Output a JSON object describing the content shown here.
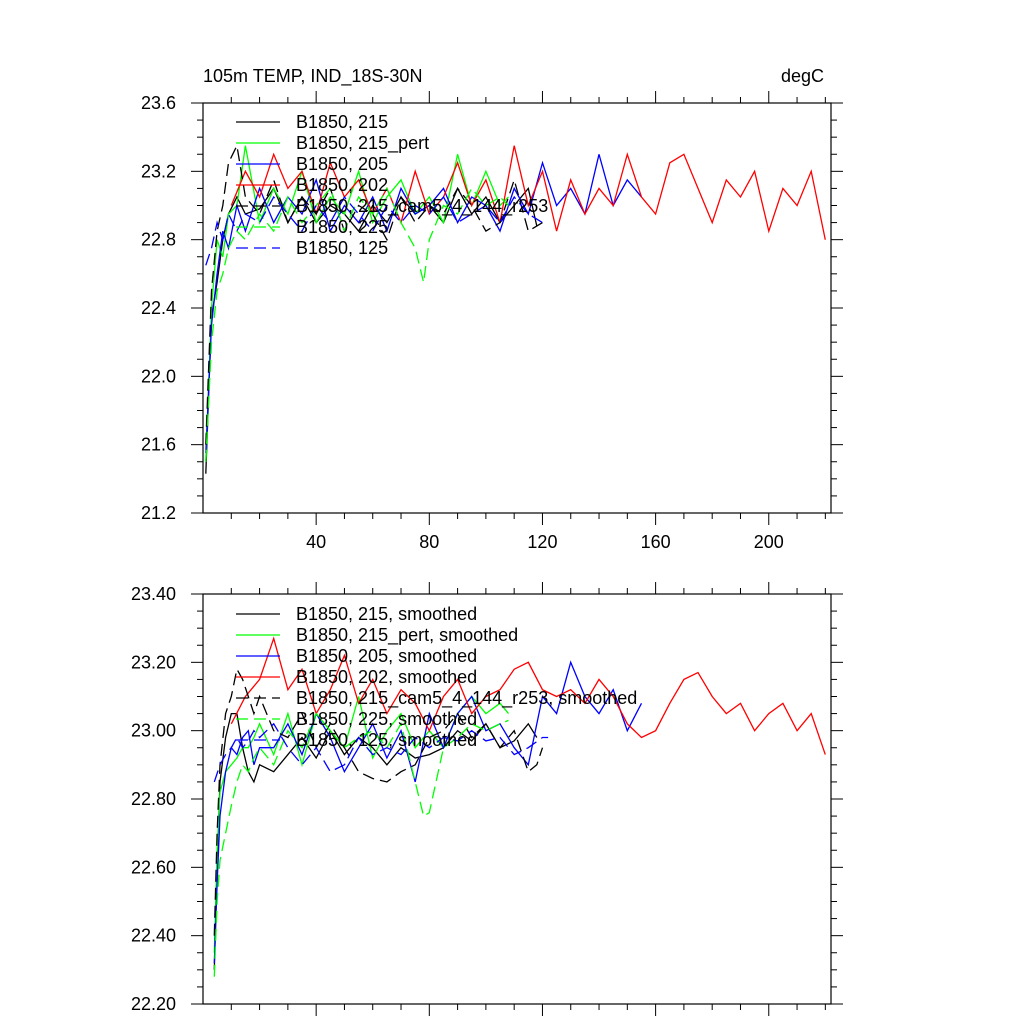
{
  "chart_data": [
    {
      "type": "line",
      "title": "105m TEMP, IND_18S-30N",
      "units": "degC",
      "xlim": [
        0,
        222
      ],
      "ylim": [
        21.2,
        23.6
      ],
      "x_ticks": [
        40,
        80,
        120,
        160,
        200
      ],
      "x_tick_labels": [
        "40",
        "80",
        "120",
        "160",
        "200"
      ],
      "y_ticks": [
        21.2,
        21.6,
        22.0,
        22.4,
        22.8,
        23.2,
        23.6
      ],
      "y_tick_labels": [
        "21.2",
        "21.6",
        "22.0",
        "22.4",
        "22.8",
        "23.2",
        "23.6"
      ],
      "legend": "top-left",
      "series": [
        {
          "name": "B1850, 215",
          "color": "#000000",
          "dash": "solid",
          "x": [
            1,
            3,
            5,
            7,
            9,
            12,
            15,
            20,
            25,
            30,
            35,
            40,
            45,
            50,
            55,
            60,
            65,
            70,
            75,
            80,
            85,
            90,
            95,
            100,
            105,
            110,
            115,
            118
          ],
          "y": [
            21.43,
            22.35,
            22.55,
            22.8,
            22.95,
            23.05,
            22.95,
            22.98,
            23.1,
            22.9,
            23.05,
            22.9,
            23.0,
            22.95,
            22.85,
            23.0,
            22.9,
            23.05,
            22.95,
            23.0,
            22.9,
            23.1,
            22.95,
            23.05,
            22.9,
            23.0,
            23.1,
            22.88
          ]
        },
        {
          "name": "B1850, 215_pert",
          "color": "#00ff00",
          "dash": "solid",
          "x": [
            1,
            3,
            5,
            7,
            9,
            12,
            15,
            20,
            25,
            30,
            35,
            40,
            45,
            50,
            55,
            60,
            65,
            70,
            75,
            80,
            85,
            90,
            95,
            100,
            105,
            108
          ],
          "y": [
            21.5,
            22.4,
            22.8,
            22.7,
            22.95,
            23.0,
            23.35,
            22.9,
            23.1,
            22.95,
            23.2,
            22.9,
            23.05,
            22.95,
            23.2,
            22.9,
            23.05,
            23.15,
            22.95,
            23.05,
            22.9,
            23.3,
            23.0,
            23.2,
            23.0,
            23.05
          ]
        },
        {
          "name": "B1850, 205",
          "color": "#0000ff",
          "dash": "solid",
          "x": [
            1,
            3,
            5,
            7,
            9,
            12,
            15,
            20,
            25,
            30,
            35,
            40,
            45,
            50,
            55,
            60,
            65,
            70,
            75,
            80,
            85,
            90,
            95,
            100,
            105,
            110,
            115,
            120,
            125,
            130,
            135,
            140,
            145,
            150,
            155
          ],
          "y": [
            21.55,
            22.3,
            22.6,
            22.85,
            22.75,
            23.0,
            22.85,
            23.1,
            22.9,
            23.05,
            22.95,
            23.15,
            22.85,
            23.0,
            22.9,
            23.05,
            22.85,
            23.1,
            22.95,
            23.0,
            23.1,
            22.9,
            23.05,
            23.0,
            22.85,
            23.1,
            22.95,
            23.25,
            23.0,
            23.1,
            22.95,
            23.3,
            23.0,
            23.15,
            23.05
          ]
        },
        {
          "name": "B1850, 202",
          "color": "#ff0000",
          "dash": "solid",
          "x": [
            10,
            15,
            20,
            25,
            30,
            35,
            40,
            45,
            50,
            55,
            60,
            65,
            70,
            75,
            80,
            85,
            90,
            95,
            100,
            105,
            110,
            115,
            120,
            125,
            130,
            135,
            140,
            145,
            150,
            155,
            160,
            165,
            170,
            175,
            180,
            185,
            190,
            195,
            200,
            205,
            210,
            215,
            220
          ],
          "y": [
            23.0,
            23.2,
            23.05,
            23.3,
            23.1,
            23.2,
            22.95,
            23.25,
            23.05,
            23.15,
            22.95,
            23.1,
            22.9,
            23.2,
            22.95,
            23.05,
            23.25,
            23.0,
            23.15,
            22.9,
            23.35,
            23.0,
            23.2,
            22.85,
            23.15,
            22.95,
            23.1,
            23.0,
            23.3,
            23.05,
            22.95,
            23.25,
            23.3,
            23.1,
            22.9,
            23.15,
            23.05,
            23.2,
            22.85,
            23.1,
            23.0,
            23.2,
            22.8
          ]
        },
        {
          "name": "B1850, 215_cam5_4_144_r253",
          "color": "#000000",
          "dash": "dashed",
          "x": [
            1,
            3,
            5,
            7,
            9,
            12,
            15,
            20,
            25,
            30,
            35,
            40,
            45,
            50,
            55,
            60,
            65,
            70,
            75,
            80,
            85,
            90,
            95,
            100,
            105,
            110,
            115,
            120
          ],
          "y": [
            21.6,
            22.5,
            22.85,
            23.0,
            23.25,
            23.35,
            23.05,
            22.95,
            23.15,
            22.9,
            23.05,
            22.95,
            23.1,
            22.85,
            23.0,
            22.95,
            22.8,
            23.05,
            22.9,
            23.0,
            22.95,
            23.1,
            23.0,
            22.85,
            22.9,
            23.15,
            22.85,
            22.9
          ]
        },
        {
          "name": "B1850, 225",
          "color": "#00ff00",
          "dash": "dashed",
          "x": [
            1,
            3,
            5,
            7,
            9,
            12,
            15,
            20,
            25,
            30,
            35,
            40,
            45,
            50,
            55,
            60,
            65,
            70,
            75,
            78,
            80,
            85,
            90,
            95,
            100,
            105,
            108
          ],
          "y": [
            21.5,
            22.2,
            22.5,
            22.6,
            22.75,
            22.85,
            22.8,
            22.95,
            22.85,
            23.05,
            22.9,
            23.0,
            23.1,
            22.85,
            23.05,
            22.95,
            23.1,
            22.9,
            22.75,
            22.55,
            22.8,
            23.0,
            22.95,
            23.1,
            23.0,
            23.05,
            23.0
          ]
        },
        {
          "name": "B1850, 125",
          "color": "#0000ff",
          "dash": "dashed",
          "x": [
            1,
            3,
            5,
            7,
            9,
            12,
            15,
            20,
            25,
            30,
            35,
            40,
            45,
            50,
            55,
            60,
            65,
            70,
            75,
            80,
            85,
            90,
            95,
            100,
            105,
            110,
            115,
            120
          ],
          "y": [
            22.65,
            22.75,
            22.9,
            22.8,
            22.95,
            22.85,
            22.95,
            22.9,
            23.05,
            22.95,
            22.85,
            23.0,
            22.9,
            23.05,
            22.95,
            22.85,
            23.0,
            22.9,
            23.0,
            22.95,
            23.05,
            22.9,
            22.95,
            23.0,
            22.9,
            23.05,
            22.95,
            22.9
          ]
        }
      ]
    },
    {
      "type": "line",
      "xlim": [
        0,
        222
      ],
      "ylim": [
        22.2,
        23.4
      ],
      "x_ticks": [
        40,
        80,
        120,
        160,
        200
      ],
      "y_ticks": [
        22.2,
        22.4,
        22.6,
        22.8,
        23.0,
        23.2,
        23.4
      ],
      "y_tick_labels": [
        "22.20",
        "22.40",
        "22.60",
        "22.80",
        "23.00",
        "23.20",
        "23.40"
      ],
      "legend": "top-left",
      "series": [
        {
          "name": "B1850, 215, smoothed",
          "color": "#000000",
          "dash": "solid",
          "x": [
            4,
            5,
            6,
            8,
            10,
            12,
            14,
            16,
            18,
            20,
            25,
            30,
            35,
            40,
            45,
            50,
            55,
            60,
            65,
            70,
            75,
            80,
            85,
            90,
            95,
            100,
            105,
            110,
            115,
            118
          ],
          "y": [
            22.3,
            22.6,
            22.85,
            22.98,
            23.05,
            23.05,
            22.95,
            22.88,
            22.85,
            22.9,
            22.88,
            22.93,
            22.98,
            22.92,
            23.0,
            22.93,
            22.98,
            22.95,
            22.9,
            22.95,
            22.92,
            22.93,
            22.95,
            23.0,
            22.97,
            23.02,
            22.95,
            22.97,
            23.02,
            22.98
          ]
        },
        {
          "name": "B1850, 215_pert, smoothed",
          "color": "#00ff00",
          "dash": "solid",
          "x": [
            4,
            5,
            6,
            8,
            10,
            12,
            14,
            16,
            18,
            20,
            25,
            30,
            35,
            40,
            45,
            50,
            55,
            60,
            65,
            70,
            75,
            80,
            85,
            90,
            95,
            100,
            105,
            108
          ],
          "y": [
            22.35,
            22.65,
            22.82,
            22.88,
            22.9,
            22.92,
            22.95,
            22.95,
            22.98,
            23.02,
            22.93,
            23.05,
            22.9,
            23.05,
            23.0,
            22.95,
            23.1,
            22.92,
            23.0,
            23.05,
            22.95,
            23.0,
            22.95,
            23.05,
            23.1,
            23.05,
            23.08,
            23.05
          ]
        },
        {
          "name": "B1850, 205, smoothed",
          "color": "#0000ff",
          "dash": "solid",
          "x": [
            4,
            5,
            6,
            8,
            10,
            12,
            14,
            16,
            18,
            20,
            25,
            30,
            35,
            40,
            45,
            50,
            55,
            60,
            65,
            70,
            75,
            80,
            85,
            90,
            95,
            100,
            105,
            110,
            115,
            120,
            125,
            130,
            135,
            140,
            145,
            150,
            155
          ],
          "y": [
            22.32,
            22.55,
            22.75,
            22.88,
            22.95,
            22.93,
            22.98,
            23.0,
            22.9,
            22.95,
            22.95,
            23.02,
            22.93,
            23.05,
            22.98,
            22.88,
            22.95,
            23.02,
            22.92,
            23.0,
            22.85,
            23.05,
            22.95,
            23.05,
            23.1,
            23.0,
            23.02,
            22.95,
            22.9,
            23.1,
            23.05,
            23.2,
            23.1,
            23.05,
            23.12,
            23.0,
            23.08
          ]
        },
        {
          "name": "B1850, 202, smoothed",
          "color": "#ff0000",
          "dash": "solid",
          "x": [
            10,
            15,
            20,
            25,
            30,
            35,
            40,
            45,
            50,
            55,
            60,
            65,
            70,
            75,
            80,
            85,
            90,
            95,
            100,
            105,
            110,
            115,
            120,
            125,
            130,
            135,
            140,
            145,
            150,
            155,
            160,
            165,
            170,
            175,
            180,
            185,
            190,
            195,
            200,
            205,
            210,
            215,
            220
          ],
          "y": [
            23.02,
            23.1,
            23.15,
            23.27,
            23.12,
            23.18,
            23.05,
            23.12,
            23.22,
            23.08,
            23.15,
            23.05,
            23.12,
            23.08,
            23.0,
            23.1,
            23.15,
            23.05,
            23.1,
            23.12,
            23.18,
            23.2,
            23.12,
            23.1,
            23.12,
            23.08,
            23.15,
            23.1,
            23.02,
            22.98,
            23.0,
            23.08,
            23.15,
            23.17,
            23.1,
            23.05,
            23.08,
            23.0,
            23.05,
            23.08,
            23.0,
            23.05,
            22.93
          ]
        },
        {
          "name": "B1850, 215_cam5_4_144_r253, smoothed",
          "color": "#000000",
          "dash": "dashed",
          "x": [
            4,
            5,
            6,
            8,
            10,
            12,
            14,
            16,
            18,
            20,
            25,
            30,
            35,
            40,
            45,
            50,
            55,
            60,
            65,
            70,
            75,
            80,
            85,
            90,
            95,
            100,
            105,
            110,
            115,
            118,
            120
          ],
          "y": [
            22.4,
            22.7,
            22.9,
            23.05,
            23.1,
            23.18,
            23.15,
            23.1,
            23.05,
            23.1,
            23.0,
            22.98,
            23.05,
            22.95,
            23.02,
            22.95,
            22.88,
            22.86,
            22.85,
            22.88,
            22.9,
            22.98,
            23.0,
            23.05,
            22.98,
            23.02,
            22.95,
            23.0,
            22.88,
            22.9,
            22.95
          ]
        },
        {
          "name": "B1850, 225, smoothed",
          "color": "#00ff00",
          "dash": "dashed",
          "x": [
            4,
            5,
            6,
            8,
            10,
            12,
            14,
            16,
            18,
            20,
            25,
            30,
            35,
            40,
            45,
            50,
            55,
            60,
            65,
            70,
            75,
            78,
            80,
            85,
            90,
            95,
            100,
            105,
            108
          ],
          "y": [
            22.28,
            22.5,
            22.62,
            22.7,
            22.78,
            22.85,
            22.9,
            22.88,
            22.92,
            22.95,
            22.9,
            23.0,
            22.95,
            23.05,
            23.0,
            22.95,
            22.98,
            23.0,
            22.95,
            23.02,
            22.85,
            22.75,
            22.76,
            22.95,
            22.98,
            23.02,
            23.0,
            23.02,
            23.03
          ]
        },
        {
          "name": "B1850, 125, smoothed",
          "color": "#0000ff",
          "dash": "dashed",
          "x": [
            4,
            6,
            8,
            10,
            12,
            14,
            16,
            18,
            20,
            25,
            30,
            35,
            40,
            45,
            50,
            55,
            60,
            65,
            70,
            75,
            80,
            85,
            90,
            95,
            100,
            105,
            110,
            115,
            120,
            122
          ],
          "y": [
            22.85,
            22.9,
            22.93,
            22.95,
            22.98,
            22.95,
            22.97,
            23.0,
            22.98,
            23.02,
            22.95,
            22.9,
            22.95,
            22.88,
            22.9,
            22.98,
            22.93,
            22.95,
            22.93,
            22.98,
            22.95,
            22.98,
            22.97,
            23.0,
            22.97,
            22.98,
            22.93,
            22.95,
            22.98,
            22.98
          ]
        }
      ]
    }
  ]
}
